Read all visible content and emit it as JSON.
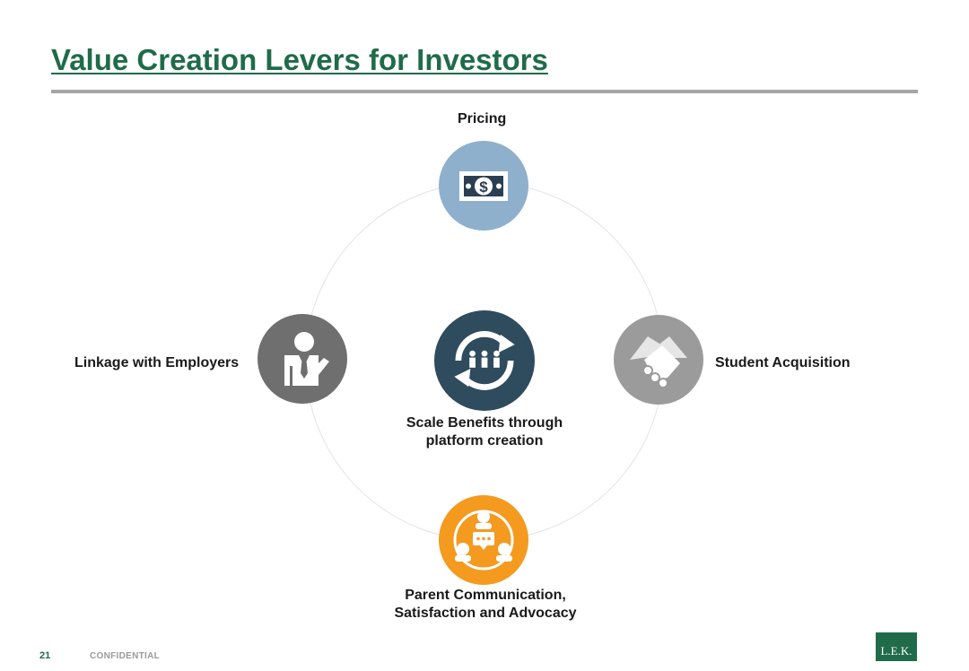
{
  "slide": {
    "title": "Value Creation Levers for Investors",
    "page_number": "21",
    "confidential": "CONFIDENTIAL",
    "logo_text": "L.E.K."
  },
  "diagram": {
    "center": {
      "label_line1": "Scale Benefits through",
      "label_line2": "platform creation",
      "icon": "cycle-people-icon",
      "color": "#2f4b5e"
    },
    "nodes": [
      {
        "id": "pricing",
        "label": "Pricing",
        "icon": "money-icon",
        "color": "#8fb0cc"
      },
      {
        "id": "student",
        "label": "Student Acquisition",
        "icon": "handshake-icon",
        "color": "#9b9b9b"
      },
      {
        "id": "parent",
        "label_line1": "Parent Communication,",
        "label_line2": "Satisfaction and Advocacy",
        "icon": "communication-icon",
        "color": "#f39a1f"
      },
      {
        "id": "employers",
        "label": "Linkage with Employers",
        "icon": "businessman-icon",
        "color": "#6f6f6f"
      }
    ]
  }
}
